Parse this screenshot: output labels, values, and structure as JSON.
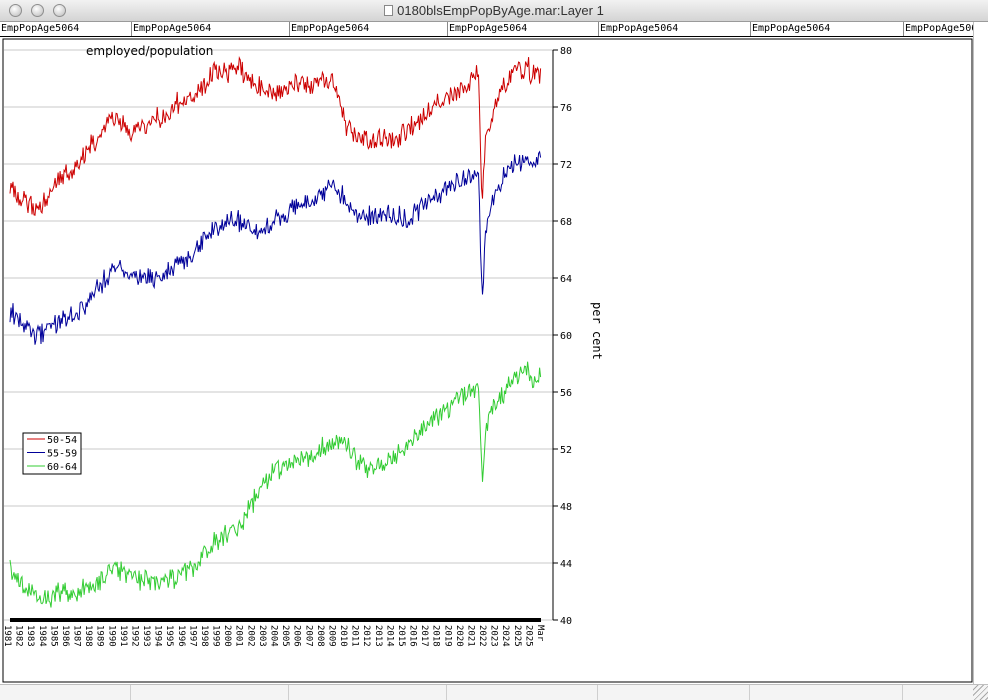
{
  "window": {
    "title": "0180blsEmpPopByAge.mar:Layer 1"
  },
  "tabs": [
    "EmpPopAge5064",
    "EmpPopAge5064",
    "EmpPopAge5064",
    "EmpPopAge5064",
    "EmpPopAge5064",
    "EmpPopAge5064",
    "EmpPopAge5064"
  ],
  "colors": {
    "s1": "#cc0000",
    "s2": "#000099",
    "s3": "#33cc33",
    "grid": "#c8c8c8"
  },
  "chart_data": {
    "type": "line",
    "title": "employed/population",
    "ylabel": "per cent",
    "xlabel": "",
    "ylim": [
      40,
      80
    ],
    "yticks": [
      40,
      44,
      48,
      52,
      56,
      60,
      64,
      68,
      72,
      76,
      80
    ],
    "grid": true,
    "legend_position": "left-middle",
    "xlim": [
      1981.0,
      2025.2
    ],
    "xtick_labels": [
      "1981",
      "1982",
      "1983",
      "1984",
      "1985",
      "1986",
      "1987",
      "1988",
      "1989",
      "1990",
      "1991",
      "1992",
      "1993",
      "1994",
      "1995",
      "1996",
      "1997",
      "1998",
      "1999",
      "2000",
      "2001",
      "2002",
      "2003",
      "2004",
      "2005",
      "2006",
      "2007",
      "2008",
      "2009",
      "2010",
      "2011",
      "2012",
      "2013",
      "2014",
      "2015",
      "2016",
      "2017",
      "2018",
      "2019",
      "2020",
      "2021",
      "2022",
      "2023",
      "2024",
      "2025",
      "2025",
      "Mar"
    ],
    "series": [
      {
        "name": "50-54",
        "x": [
          1981.0,
          1982.0,
          1983.0,
          1984.0,
          1985.0,
          1986.0,
          1987.0,
          1988.0,
          1989.0,
          1990.0,
          1991.0,
          1992.0,
          1993.0,
          1994.0,
          1995.0,
          1996.0,
          1997.0,
          1998.0,
          1999.0,
          2000.0,
          2001.0,
          2002.0,
          2003.0,
          2004.0,
          2005.0,
          2006.0,
          2007.0,
          2008.0,
          2009.0,
          2010.0,
          2011.0,
          2012.0,
          2013.0,
          2014.0,
          2015.0,
          2016.0,
          2017.0,
          2018.0,
          2019.0,
          2020.0,
          2020.3,
          2020.6,
          2021.0,
          2022.0,
          2023.0,
          2024.0,
          2024.5,
          2025.0,
          2025.2
        ],
        "y": [
          70.5,
          69.5,
          68.8,
          69.5,
          71.0,
          71.2,
          72.5,
          73.5,
          74.8,
          75.2,
          74.0,
          74.5,
          75.0,
          75.5,
          76.3,
          76.5,
          77.5,
          78.3,
          78.5,
          78.8,
          77.8,
          77.3,
          77.0,
          77.2,
          77.8,
          77.5,
          78.0,
          77.8,
          74.5,
          73.8,
          73.5,
          73.7,
          73.6,
          74.2,
          75.0,
          75.8,
          76.5,
          77.0,
          77.5,
          78.5,
          69.0,
          73.5,
          75.0,
          77.5,
          78.6,
          78.8,
          78.3,
          78.6,
          78.2
        ]
      },
      {
        "name": "55-59",
        "x": [
          1981.0,
          1982.0,
          1983.0,
          1984.0,
          1985.0,
          1986.0,
          1987.0,
          1988.0,
          1989.0,
          1990.0,
          1991.0,
          1992.0,
          1993.0,
          1994.0,
          1995.0,
          1996.0,
          1997.0,
          1998.0,
          1999.0,
          2000.0,
          2001.0,
          2002.0,
          2003.0,
          2004.0,
          2005.0,
          2006.0,
          2007.0,
          2008.0,
          2009.0,
          2010.0,
          2011.0,
          2012.0,
          2013.0,
          2014.0,
          2015.0,
          2016.0,
          2017.0,
          2018.0,
          2019.0,
          2020.0,
          2020.3,
          2020.6,
          2021.0,
          2022.0,
          2023.0,
          2024.0,
          2024.5,
          2025.0,
          2025.2
        ],
        "y": [
          61.5,
          61.0,
          59.8,
          60.5,
          61.0,
          61.3,
          62.0,
          63.0,
          64.0,
          64.8,
          64.2,
          64.0,
          64.0,
          64.3,
          65.0,
          65.5,
          66.5,
          67.5,
          67.8,
          68.0,
          67.5,
          67.3,
          68.0,
          68.3,
          69.0,
          69.5,
          70.0,
          70.5,
          69.5,
          68.0,
          68.3,
          68.5,
          68.3,
          68.2,
          68.8,
          69.5,
          70.0,
          70.5,
          71.0,
          71.5,
          62.0,
          67.5,
          69.0,
          71.0,
          72.0,
          72.3,
          71.5,
          72.8,
          73.2
        ]
      },
      {
        "name": "60-64",
        "x": [
          1981.0,
          1982.0,
          1983.0,
          1984.0,
          1985.0,
          1986.0,
          1987.0,
          1988.0,
          1989.0,
          1990.0,
          1991.0,
          1992.0,
          1993.0,
          1994.0,
          1995.0,
          1996.0,
          1997.0,
          1998.0,
          1999.0,
          2000.0,
          2001.0,
          2002.0,
          2003.0,
          2004.0,
          2005.0,
          2006.0,
          2007.0,
          2008.0,
          2009.0,
          2010.0,
          2011.0,
          2012.0,
          2013.0,
          2014.0,
          2015.0,
          2016.0,
          2017.0,
          2018.0,
          2019.0,
          2020.0,
          2020.3,
          2020.6,
          2021.0,
          2022.0,
          2023.0,
          2024.0,
          2024.5,
          2025.0,
          2025.2
        ],
        "y": [
          43.5,
          42.5,
          42.0,
          41.5,
          41.8,
          41.8,
          42.0,
          42.5,
          43.0,
          43.5,
          43.2,
          42.8,
          42.5,
          42.8,
          43.2,
          43.5,
          44.5,
          45.5,
          46.0,
          46.5,
          48.0,
          49.5,
          50.5,
          50.8,
          51.2,
          51.5,
          52.0,
          52.5,
          52.3,
          51.0,
          50.5,
          51.0,
          51.5,
          52.0,
          53.0,
          53.8,
          54.5,
          55.5,
          56.0,
          56.5,
          49.5,
          53.0,
          54.5,
          56.0,
          57.0,
          57.5,
          56.8,
          57.0,
          57.2
        ]
      }
    ]
  }
}
